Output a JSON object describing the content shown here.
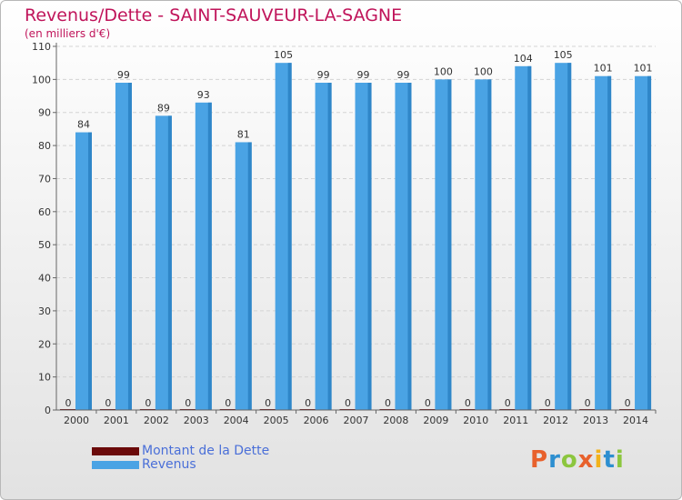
{
  "title": "Revenus/Dette - SAINT-SAUVEUR-LA-SAGNE",
  "subtitle": "(en milliers d'€)",
  "logo": {
    "chars": [
      "P",
      "r",
      "o",
      "x",
      "i",
      "t",
      "i"
    ],
    "colors": [
      "#e8612c",
      "#2d8fd0",
      "#8cc63e",
      "#e8612c",
      "#f2b21b",
      "#2d8fd0",
      "#8cc63e"
    ]
  },
  "chart_data": {
    "type": "bar",
    "categories": [
      "2000",
      "2001",
      "2002",
      "2003",
      "2004",
      "2005",
      "2006",
      "2007",
      "2008",
      "2009",
      "2010",
      "2011",
      "2012",
      "2013",
      "2014"
    ],
    "series": [
      {
        "name": "Montant de la Dette",
        "color": "#6b0a0a",
        "values": [
          0,
          0,
          0,
          0,
          0,
          0,
          0,
          0,
          0,
          0,
          0,
          0,
          0,
          0,
          0
        ]
      },
      {
        "name": "Revenus",
        "color": "#4aa3e4",
        "values": [
          84,
          99,
          89,
          93,
          81,
          105,
          99,
          99,
          99,
          100,
          100,
          104,
          105,
          101,
          101
        ]
      }
    ],
    "ylim": [
      0,
      110
    ],
    "yticks": [
      0,
      10,
      20,
      30,
      40,
      50,
      60,
      70,
      80,
      90,
      100,
      110
    ],
    "grid": true,
    "legend": "bottom-left"
  }
}
